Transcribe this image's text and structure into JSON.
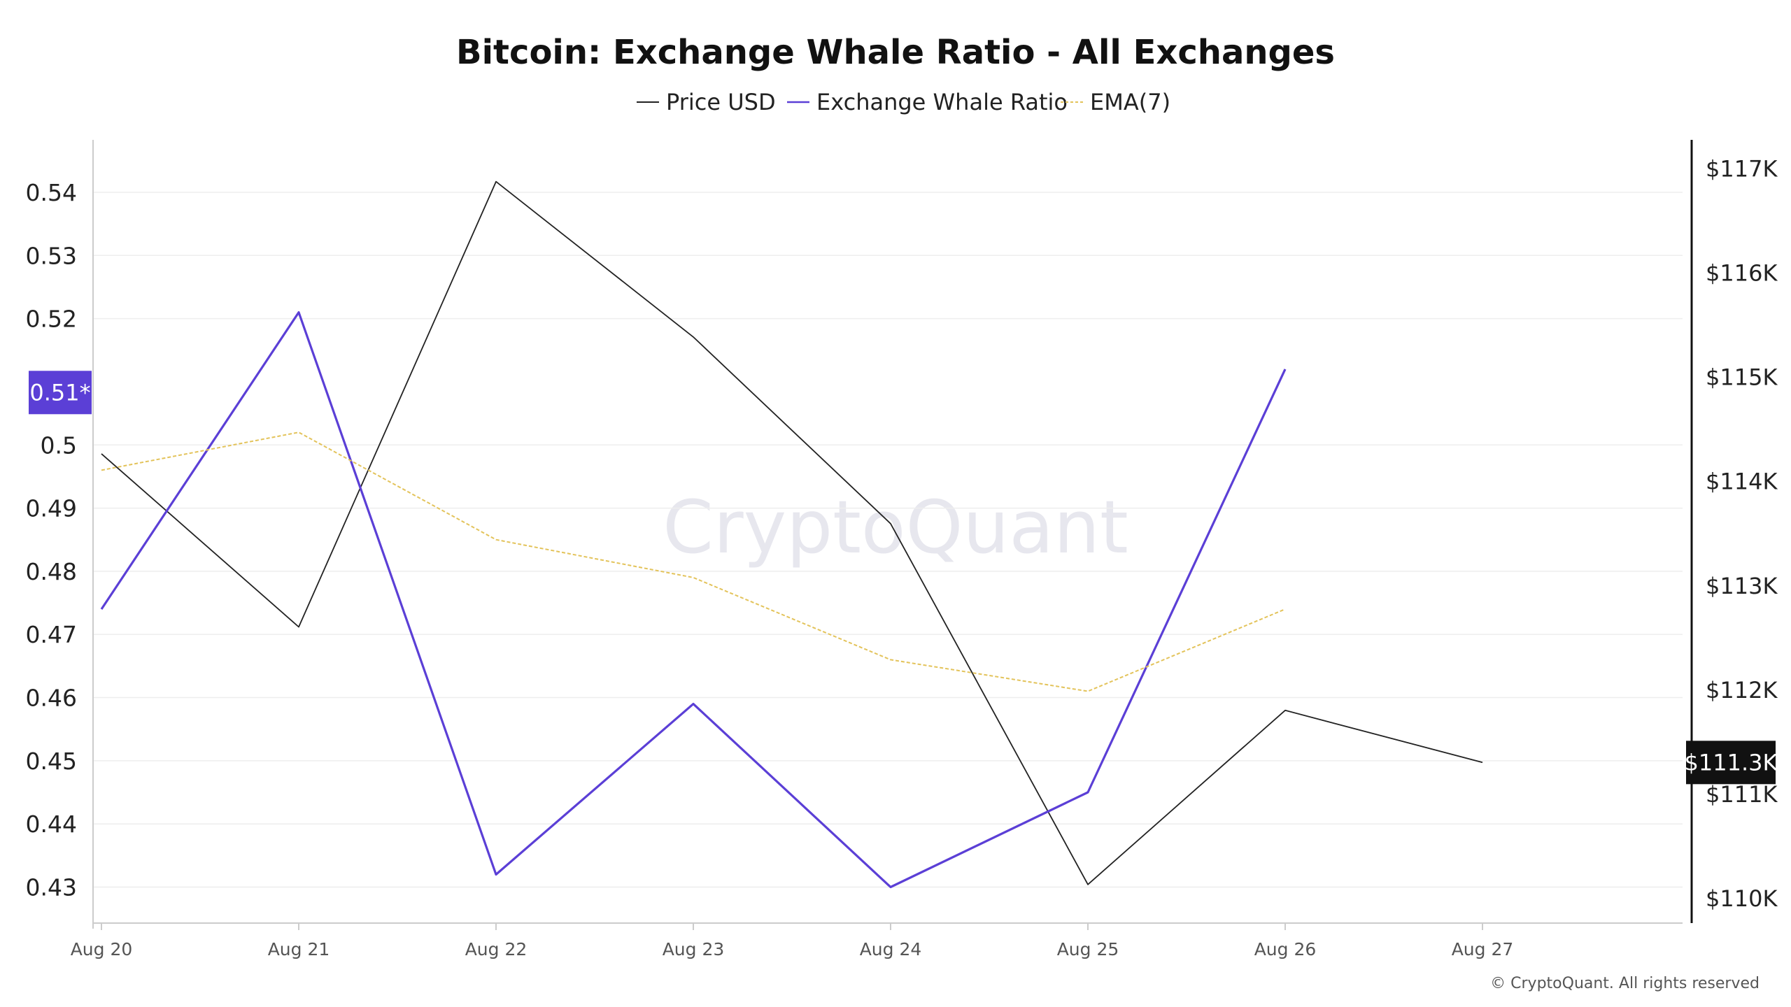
{
  "chart_data": {
    "type": "line",
    "title": "Bitcoin: Exchange Whale Ratio - All Exchanges",
    "categories": [
      "Aug 20",
      "Aug 21",
      "Aug 22",
      "Aug 23",
      "Aug 24",
      "Aug 25",
      "Aug 26",
      "Aug 27"
    ],
    "series": [
      {
        "name": "Price USD",
        "axis": "right",
        "color": "#222222",
        "values": [
          114260,
          112600,
          116870,
          115380,
          113590,
          110130,
          111800,
          111300
        ]
      },
      {
        "name": "Exchange Whale Ratio",
        "axis": "left",
        "color": "#5b3fd6",
        "values": [
          0.474,
          0.521,
          0.432,
          0.459,
          0.43,
          0.445,
          0.512,
          null
        ]
      },
      {
        "name": "EMA(7)",
        "axis": "left",
        "color": "#e3c35a",
        "values": [
          0.496,
          0.502,
          0.485,
          0.479,
          0.466,
          0.461,
          0.474,
          null
        ]
      }
    ],
    "left_axis": {
      "ticks": [
        0.43,
        0.44,
        0.45,
        0.46,
        0.47,
        0.48,
        0.49,
        0.5,
        0.52,
        0.53,
        0.54
      ],
      "tick_labels": [
        "0.43",
        "0.44",
        "0.45",
        "0.46",
        "0.47",
        "0.48",
        "0.49",
        "0.5",
        "0.52",
        "0.53",
        "0.54"
      ],
      "range": [
        0.4243,
        0.5483
      ]
    },
    "right_axis": {
      "ticks": [
        110000,
        111000,
        112000,
        113000,
        114000,
        115000,
        116000,
        117000
      ],
      "tick_labels": [
        "$110K",
        "$111K",
        "$112K",
        "$113K",
        "$114K",
        "$115K",
        "$116K",
        "$117K"
      ],
      "range": [
        109760,
        117270
      ]
    },
    "current_ratio_label": "0.51*",
    "current_ratio_value": 0.5083,
    "current_price_label": "$111.3K",
    "current_price_value": 111300,
    "grid": true,
    "legend_position": "top-center"
  },
  "watermark": "CryptoQuant",
  "copyright": "© CryptoQuant. All rights reserved",
  "colors": {
    "price": "#222222",
    "ratio": "#5b3fd6",
    "ema": "#e3c35a",
    "grid": "#eeeeee",
    "badge_ratio": "#5b3fd6",
    "badge_price": "#111111"
  }
}
